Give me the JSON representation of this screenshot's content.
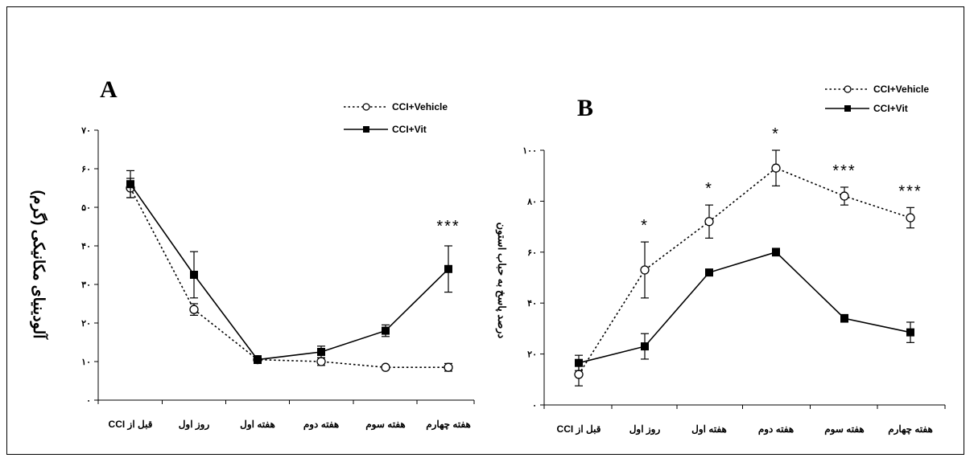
{
  "chart_data": [
    {
      "panel": "A",
      "type": "line",
      "ylabel": "آلودینیای مکانیکی (گرم)",
      "ylim": [
        0,
        70
      ],
      "yticks": [
        "۰",
        "۱۰",
        "۲۰",
        "۳۰",
        "۴۰",
        "۵۰",
        "۶۰",
        "۷۰"
      ],
      "categories": [
        "قبل از CCI",
        "روز اول",
        "هفته اول",
        "هفته دوم",
        "هفته سوم",
        "هفته چهارم"
      ],
      "series": [
        {
          "name": "CCI+Vehicle",
          "marker": "open-circle",
          "dash": "dotted",
          "values": [
            55,
            23.5,
            10.5,
            10,
            8.5,
            8.5
          ],
          "err": [
            2.5,
            1.5,
            1,
            1,
            0.5,
            1
          ]
        },
        {
          "name": "CCI+Vit",
          "marker": "filled-square",
          "dash": "solid",
          "values": [
            56,
            32.5,
            10.5,
            12.5,
            18,
            34
          ],
          "err": [
            3.5,
            6,
            1,
            1.5,
            1.5,
            6
          ]
        }
      ],
      "annotations": [
        {
          "category_index": 5,
          "text": "***"
        }
      ]
    },
    {
      "panel": "B",
      "type": "line",
      "ylabel": "درصد پاسخ به حباب استون",
      "ylim": [
        0,
        100
      ],
      "yticks": [
        "۰",
        "۲۰",
        "۴۰",
        "۶۰",
        "۸۰",
        "۱۰۰"
      ],
      "categories": [
        "قبل از CCI",
        "روز اول",
        "هفته اول",
        "هفته دوم",
        "هفته سوم",
        "هفته چهارم"
      ],
      "series": [
        {
          "name": "CCI+Vehicle",
          "marker": "open-circle",
          "dash": "dotted",
          "values": [
            12,
            53,
            72,
            93,
            82,
            73.5
          ],
          "err": [
            4.5,
            11,
            6.5,
            7,
            3.5,
            4
          ]
        },
        {
          "name": "CCI+Vit",
          "marker": "filled-square",
          "dash": "solid",
          "values": [
            16.5,
            23,
            52,
            60,
            34,
            28.5
          ],
          "err": [
            3,
            5,
            1,
            1.5,
            1.5,
            4
          ]
        }
      ],
      "annotations": [
        {
          "category_index": 1,
          "text": "*"
        },
        {
          "category_index": 2,
          "text": "*"
        },
        {
          "category_index": 3,
          "text": "*"
        },
        {
          "category_index": 4,
          "text": "***"
        },
        {
          "category_index": 5,
          "text": "***"
        }
      ]
    }
  ]
}
